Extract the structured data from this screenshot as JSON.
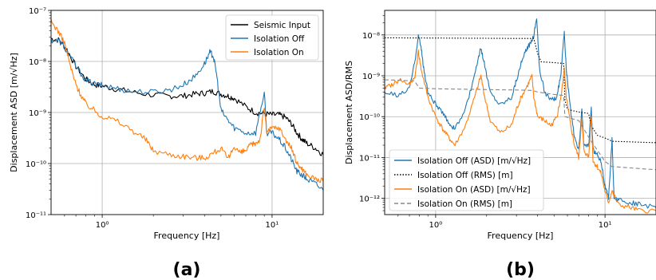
{
  "panels": [
    {
      "label_open": "(",
      "label_letter": "a",
      "label_close": ")"
    },
    {
      "label_open": "(",
      "label_letter": "b",
      "label_close": ")"
    }
  ],
  "colors": {
    "seismic": "#000000",
    "off": "#1f77b4",
    "on": "#ff7f0e",
    "off_rms": "#000000",
    "on_rms": "#888888"
  },
  "chart_data": [
    {
      "type": "line",
      "xlabel": "Frequency [Hz]",
      "ylabel": "Displacement ASD [m/√Hz]",
      "xscale": "log",
      "yscale": "log",
      "xlim": [
        0.5,
        20
      ],
      "ylim": [
        1e-11,
        1e-07
      ],
      "grid": true,
      "legend_position": "top-right",
      "series": [
        {
          "name": "Seismic Input",
          "color": "#000000",
          "points": [
            [
              0.5,
              2.8e-08
            ],
            [
              0.56,
              2.6e-08
            ],
            [
              0.62,
              1.7e-08
            ],
            [
              0.7,
              8e-09
            ],
            [
              0.8,
              4.5e-09
            ],
            [
              0.9,
              3.5e-09
            ],
            [
              1.0,
              3.3e-09
            ],
            [
              1.2,
              2.9e-09
            ],
            [
              1.5,
              2.5e-09
            ],
            [
              2.0,
              2.2e-09
            ],
            [
              2.5,
              2.1e-09
            ],
            [
              3.0,
              2.1e-09
            ],
            [
              3.5,
              2.3e-09
            ],
            [
              4.0,
              2.4e-09
            ],
            [
              4.5,
              2.6e-09
            ],
            [
              5.0,
              2.3e-09
            ],
            [
              5.5,
              2.1e-09
            ],
            [
              6.0,
              1.9e-09
            ],
            [
              7.0,
              1.3e-09
            ],
            [
              8.0,
              1e-09
            ],
            [
              9.0,
              9.5e-10
            ],
            [
              10.0,
              9e-10
            ],
            [
              11.0,
              9e-10
            ],
            [
              12.0,
              8e-10
            ],
            [
              13.0,
              6e-10
            ],
            [
              14.0,
              4e-10
            ],
            [
              15.0,
              3e-10
            ],
            [
              16.0,
              2.5e-10
            ],
            [
              18.0,
              2e-10
            ],
            [
              20.0,
              1.5e-10
            ]
          ]
        },
        {
          "name": "Isolation Off",
          "color": "#1f77b4",
          "points": [
            [
              0.5,
              2.6e-08
            ],
            [
              0.56,
              2.5e-08
            ],
            [
              0.62,
              1.6e-08
            ],
            [
              0.7,
              8e-09
            ],
            [
              0.8,
              4.3e-09
            ],
            [
              0.9,
              3.6e-09
            ],
            [
              1.0,
              3.4e-09
            ],
            [
              1.2,
              3e-09
            ],
            [
              1.5,
              2.6e-09
            ],
            [
              2.0,
              2.5e-09
            ],
            [
              2.5,
              2.8e-09
            ],
            [
              3.0,
              3.5e-09
            ],
            [
              3.5,
              5e-09
            ],
            [
              4.0,
              9e-09
            ],
            [
              4.3,
              1.5e-08
            ],
            [
              4.5,
              1.3e-08
            ],
            [
              4.7,
              6e-09
            ],
            [
              5.0,
              1.1e-09
            ],
            [
              5.5,
              7e-10
            ],
            [
              6.0,
              5e-10
            ],
            [
              7.0,
              4e-10
            ],
            [
              8.0,
              4e-10
            ],
            [
              9.0,
              2.5e-09
            ],
            [
              9.3,
              4e-10
            ],
            [
              10.0,
              4e-10
            ],
            [
              11.0,
              3e-10
            ],
            [
              12.0,
              2e-10
            ],
            [
              13.0,
              1.2e-10
            ],
            [
              14.0,
              7e-11
            ],
            [
              15.0,
              6e-11
            ],
            [
              16.0,
              5e-11
            ],
            [
              18.0,
              4e-11
            ],
            [
              20.0,
              3e-11
            ]
          ]
        },
        {
          "name": "Isolation On",
          "color": "#ff7f0e",
          "points": [
            [
              0.5,
              6e-08
            ],
            [
              0.55,
              4e-08
            ],
            [
              0.6,
              2.3e-08
            ],
            [
              0.65,
              8e-09
            ],
            [
              0.7,
              3.5e-09
            ],
            [
              0.75,
              2.2e-09
            ],
            [
              0.8,
              1.5e-09
            ],
            [
              0.9,
              1.1e-09
            ],
            [
              1.0,
              8.5e-10
            ],
            [
              1.2,
              7e-10
            ],
            [
              1.5,
              4.5e-10
            ],
            [
              1.8,
              3e-10
            ],
            [
              2.0,
              1.8e-10
            ],
            [
              2.5,
              1.5e-10
            ],
            [
              3.0,
              1.4e-10
            ],
            [
              3.5,
              1.3e-10
            ],
            [
              4.0,
              1.3e-10
            ],
            [
              4.5,
              1.6e-10
            ],
            [
              5.0,
              2e-10
            ],
            [
              5.5,
              1.2e-10
            ],
            [
              6.0,
              2.2e-10
            ],
            [
              6.5,
              1.6e-10
            ],
            [
              7.0,
              1.8e-10
            ],
            [
              7.5,
              2.3e-10
            ],
            [
              8.0,
              2.5e-10
            ],
            [
              8.5,
              3e-10
            ],
            [
              9.0,
              1.3e-09
            ],
            [
              9.3,
              4e-10
            ],
            [
              10.0,
              5e-10
            ],
            [
              11.0,
              5e-10
            ],
            [
              12.0,
              3e-10
            ],
            [
              13.0,
              2e-10
            ],
            [
              14.0,
              1e-10
            ],
            [
              15.0,
              8e-11
            ],
            [
              16.0,
              6e-11
            ],
            [
              18.0,
              5e-11
            ],
            [
              20.0,
              4.5e-11
            ]
          ]
        }
      ]
    },
    {
      "type": "line",
      "xlabel": "Frequency [Hz]",
      "ylabel": "Displacement ASD/RMS",
      "xscale": "log",
      "yscale": "log",
      "xlim": [
        0.5,
        20
      ],
      "ylim": [
        4e-13,
        4e-08
      ],
      "grid": true,
      "legend_position": "bottom-left",
      "series": [
        {
          "name": "Isolation Off (ASD) [m/√Hz]",
          "color": "#1f77b4",
          "dash": "solid",
          "points": [
            [
              0.5,
              4e-10
            ],
            [
              0.6,
              3.2e-10
            ],
            [
              0.7,
              5e-10
            ],
            [
              0.75,
              2e-09
            ],
            [
              0.79,
              1e-08
            ],
            [
              0.82,
              5e-09
            ],
            [
              0.85,
              1.5e-09
            ],
            [
              0.9,
              4e-10
            ],
            [
              1.0,
              2e-10
            ],
            [
              1.1,
              1.2e-10
            ],
            [
              1.2,
              7e-11
            ],
            [
              1.3,
              5e-11
            ],
            [
              1.5,
              1.5e-10
            ],
            [
              1.7,
              1e-09
            ],
            [
              1.85,
              5e-09
            ],
            [
              1.95,
              1.8e-09
            ],
            [
              2.1,
              4e-10
            ],
            [
              2.4,
              2e-10
            ],
            [
              2.8,
              3e-10
            ],
            [
              3.0,
              8e-10
            ],
            [
              3.2,
              2e-09
            ],
            [
              3.4,
              4e-09
            ],
            [
              3.6,
              6e-09
            ],
            [
              3.8,
              1e-08
            ],
            [
              3.95,
              2.8e-08
            ],
            [
              4.1,
              1.5e-09
            ],
            [
              4.4,
              4e-10
            ],
            [
              4.8,
              2.5e-10
            ],
            [
              5.2,
              3e-10
            ],
            [
              5.5,
              1.2e-09
            ],
            [
              5.75,
              1.2e-08
            ],
            [
              5.9,
              1.5e-09
            ],
            [
              6.2,
              2e-10
            ],
            [
              6.6,
              3e-11
            ],
            [
              7.0,
              1.5e-11
            ],
            [
              7.3,
              1.5e-10
            ],
            [
              7.5,
              2e-11
            ],
            [
              8.0,
              2e-11
            ],
            [
              8.3,
              1.5e-10
            ],
            [
              8.5,
              1.5e-11
            ],
            [
              9.0,
              1.2e-11
            ],
            [
              9.5,
              8e-12
            ],
            [
              10.0,
              2e-12
            ],
            [
              10.5,
              1e-12
            ],
            [
              11.0,
              3e-11
            ],
            [
              11.3,
              1e-12
            ],
            [
              12.0,
              9e-13
            ],
            [
              14.0,
              8e-13
            ],
            [
              16.0,
              7e-13
            ],
            [
              20.0,
              6e-13
            ]
          ]
        },
        {
          "name": "Isolation Off (RMS) [m]",
          "color": "#000000",
          "dash": "dotted",
          "points": [
            [
              0.5,
              8.5e-09
            ],
            [
              1.0,
              8.4e-09
            ],
            [
              2.0,
              8.3e-09
            ],
            [
              3.0,
              8.2e-09
            ],
            [
              3.8,
              8.2e-09
            ],
            [
              4.0,
              3.5e-09
            ],
            [
              4.2,
              2.2e-09
            ],
            [
              5.0,
              2.1e-09
            ],
            [
              5.7,
              2e-09
            ],
            [
              5.8,
              2.5e-10
            ],
            [
              6.0,
              1.5e-10
            ],
            [
              7.0,
              1.3e-10
            ],
            [
              8.0,
              1.2e-10
            ],
            [
              8.3,
              6e-11
            ],
            [
              9.0,
              3.5e-11
            ],
            [
              10.0,
              3e-11
            ],
            [
              11.0,
              2.5e-11
            ],
            [
              20.0,
              2.3e-11
            ]
          ]
        },
        {
          "name": "Isolation On (ASD) [m/√Hz]",
          "color": "#ff7f0e",
          "dash": "solid",
          "points": [
            [
              0.5,
              5e-10
            ],
            [
              0.55,
              6e-10
            ],
            [
              0.62,
              8e-10
            ],
            [
              0.7,
              6e-10
            ],
            [
              0.75,
              8e-10
            ],
            [
              0.79,
              4e-09
            ],
            [
              0.82,
              1.5e-09
            ],
            [
              0.9,
              3e-10
            ],
            [
              1.0,
              1e-10
            ],
            [
              1.1,
              5e-11
            ],
            [
              1.2,
              3e-11
            ],
            [
              1.3,
              2e-11
            ],
            [
              1.5,
              6e-11
            ],
            [
              1.7,
              3e-10
            ],
            [
              1.85,
              1e-09
            ],
            [
              1.95,
              3e-10
            ],
            [
              2.1,
              8e-11
            ],
            [
              2.4,
              4e-11
            ],
            [
              2.8,
              6e-11
            ],
            [
              3.0,
              1.5e-10
            ],
            [
              3.2,
              3e-10
            ],
            [
              3.5,
              6e-10
            ],
            [
              3.7,
              1e-09
            ],
            [
              3.8,
              3e-10
            ],
            [
              4.0,
              1e-10
            ],
            [
              4.4,
              8e-11
            ],
            [
              4.8,
              6e-11
            ],
            [
              5.2,
              1e-10
            ],
            [
              5.5,
              3e-10
            ],
            [
              5.75,
              1.5e-09
            ],
            [
              5.9,
              3e-10
            ],
            [
              6.2,
              8e-11
            ],
            [
              6.6,
              2e-11
            ],
            [
              7.0,
              1e-11
            ],
            [
              7.3,
              1e-10
            ],
            [
              7.5,
              1.5e-11
            ],
            [
              8.0,
              1e-11
            ],
            [
              8.3,
              1e-10
            ],
            [
              8.5,
              8e-12
            ],
            [
              9.0,
              6e-12
            ],
            [
              9.5,
              4e-12
            ],
            [
              10.0,
              1.5e-12
            ],
            [
              10.5,
              8e-13
            ],
            [
              11.0,
              1.5e-12
            ],
            [
              12.0,
              7e-13
            ],
            [
              14.0,
              6e-13
            ],
            [
              16.0,
              5e-13
            ],
            [
              20.0,
              5e-13
            ]
          ]
        },
        {
          "name": "Isolation On (RMS) [m]",
          "color": "#888888",
          "dash": "dashed",
          "points": [
            [
              0.5,
              8e-10
            ],
            [
              0.75,
              7.5e-10
            ],
            [
              0.8,
              5e-10
            ],
            [
              1.0,
              4.8e-10
            ],
            [
              2.0,
              4.6e-10
            ],
            [
              3.0,
              4.5e-10
            ],
            [
              3.7,
              4.4e-10
            ],
            [
              4.0,
              4e-10
            ],
            [
              5.0,
              3.5e-10
            ],
            [
              5.7,
              3.3e-10
            ],
            [
              5.8,
              1e-10
            ],
            [
              7.0,
              8e-11
            ],
            [
              8.3,
              2.5e-11
            ],
            [
              10.0,
              8e-12
            ],
            [
              11.0,
              6e-12
            ],
            [
              20.0,
              5e-12
            ]
          ]
        }
      ]
    }
  ]
}
